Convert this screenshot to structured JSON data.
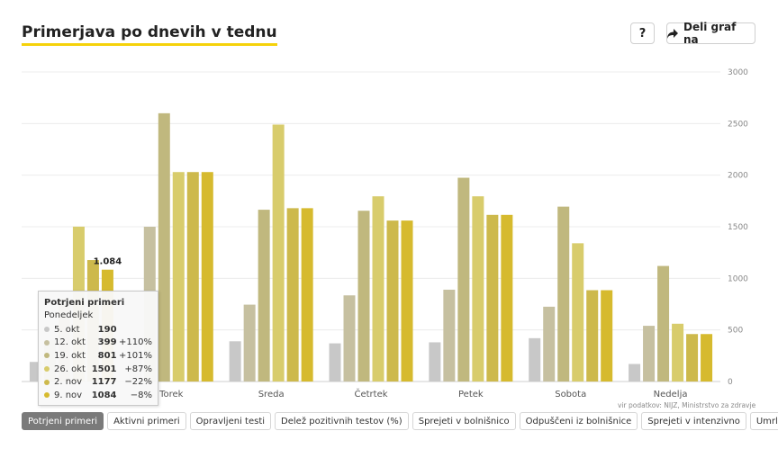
{
  "header": {
    "title": "Primerjava po dnevih v tednu",
    "help_label": "?",
    "share_label": "Deli graf na"
  },
  "icons": {
    "share": "share-arrow-icon"
  },
  "source_text": "vir podatkov: NIJZ, Ministrstvo za zdravje",
  "tabs": [
    {
      "label": "Potrjeni primeri",
      "active": true
    },
    {
      "label": "Aktivni primeri",
      "active": false
    },
    {
      "label": "Opravljeni testi",
      "active": false
    },
    {
      "label": "Delež pozitivnih testov (%)",
      "active": false
    },
    {
      "label": "Sprejeti v bolnišnico",
      "active": false
    },
    {
      "label": "Odpuščeni iz bolnišnice",
      "active": false
    },
    {
      "label": "Sprejeti v intenzivno",
      "active": false
    },
    {
      "label": "Umrli",
      "active": false
    }
  ],
  "tooltip": {
    "title": "Potrjeni primeri",
    "day": "Ponedeljek",
    "rows": [
      {
        "label": "5. okt",
        "value": "190",
        "change": "",
        "color": "#c8c8c8"
      },
      {
        "label": "12. okt",
        "value": "399",
        "change": "+110%",
        "color": "#c6c0a0"
      },
      {
        "label": "19. okt",
        "value": "801",
        "change": "+101%",
        "color": "#c0b87e"
      },
      {
        "label": "26. okt",
        "value": "1501",
        "change": "+87%",
        "color": "#d8cc6c"
      },
      {
        "label": "2. nov",
        "value": "1177",
        "change": "−22%",
        "color": "#cdb94c"
      },
      {
        "label": "9. nov",
        "value": "1084",
        "change": "−8%",
        "color": "#d6ba2e"
      }
    ]
  },
  "chart_data": {
    "type": "bar",
    "title": "Primerjava po dnevih v tednu",
    "categories": [
      "Ponedeljek",
      "Torek",
      "Sreda",
      "Četrtek",
      "Petek",
      "Sobota",
      "Nedelja"
    ],
    "category_labels_visible": [
      "",
      "Torek",
      "Sreda",
      "Četrtek",
      "Petek",
      "Sobota",
      "Nedelja"
    ],
    "ylim": [
      0,
      3000
    ],
    "yticks": [
      0,
      500,
      1000,
      1500,
      2000,
      2500,
      3000
    ],
    "grid": true,
    "y_axis_side": "right",
    "data_label": {
      "category": "Ponedeljek",
      "series": "9. nov",
      "text": "1.084"
    },
    "series": [
      {
        "name": "5. okt",
        "color": "#c8c8c8",
        "values": [
          190,
          390,
          390,
          370,
          380,
          420,
          170
        ]
      },
      {
        "name": "12. okt",
        "color": "#c6c0a0",
        "values": [
          399,
          1500,
          745,
          835,
          890,
          725,
          540
        ]
      },
      {
        "name": "19. okt",
        "color": "#c0b87e",
        "values": [
          801,
          2600,
          1665,
          1655,
          1975,
          1695,
          1120
        ]
      },
      {
        "name": "26. okt",
        "color": "#d8cc6c",
        "values": [
          1501,
          2030,
          2490,
          1795,
          1795,
          1340,
          560
        ]
      },
      {
        "name": "2. nov",
        "color": "#cdb94c",
        "values": [
          1177,
          2030,
          1680,
          1560,
          1615,
          885,
          460
        ]
      },
      {
        "name": "9. nov",
        "color": "#d6ba2e",
        "values": [
          1084,
          2030,
          1680,
          1560,
          1615,
          885,
          460
        ]
      }
    ]
  }
}
